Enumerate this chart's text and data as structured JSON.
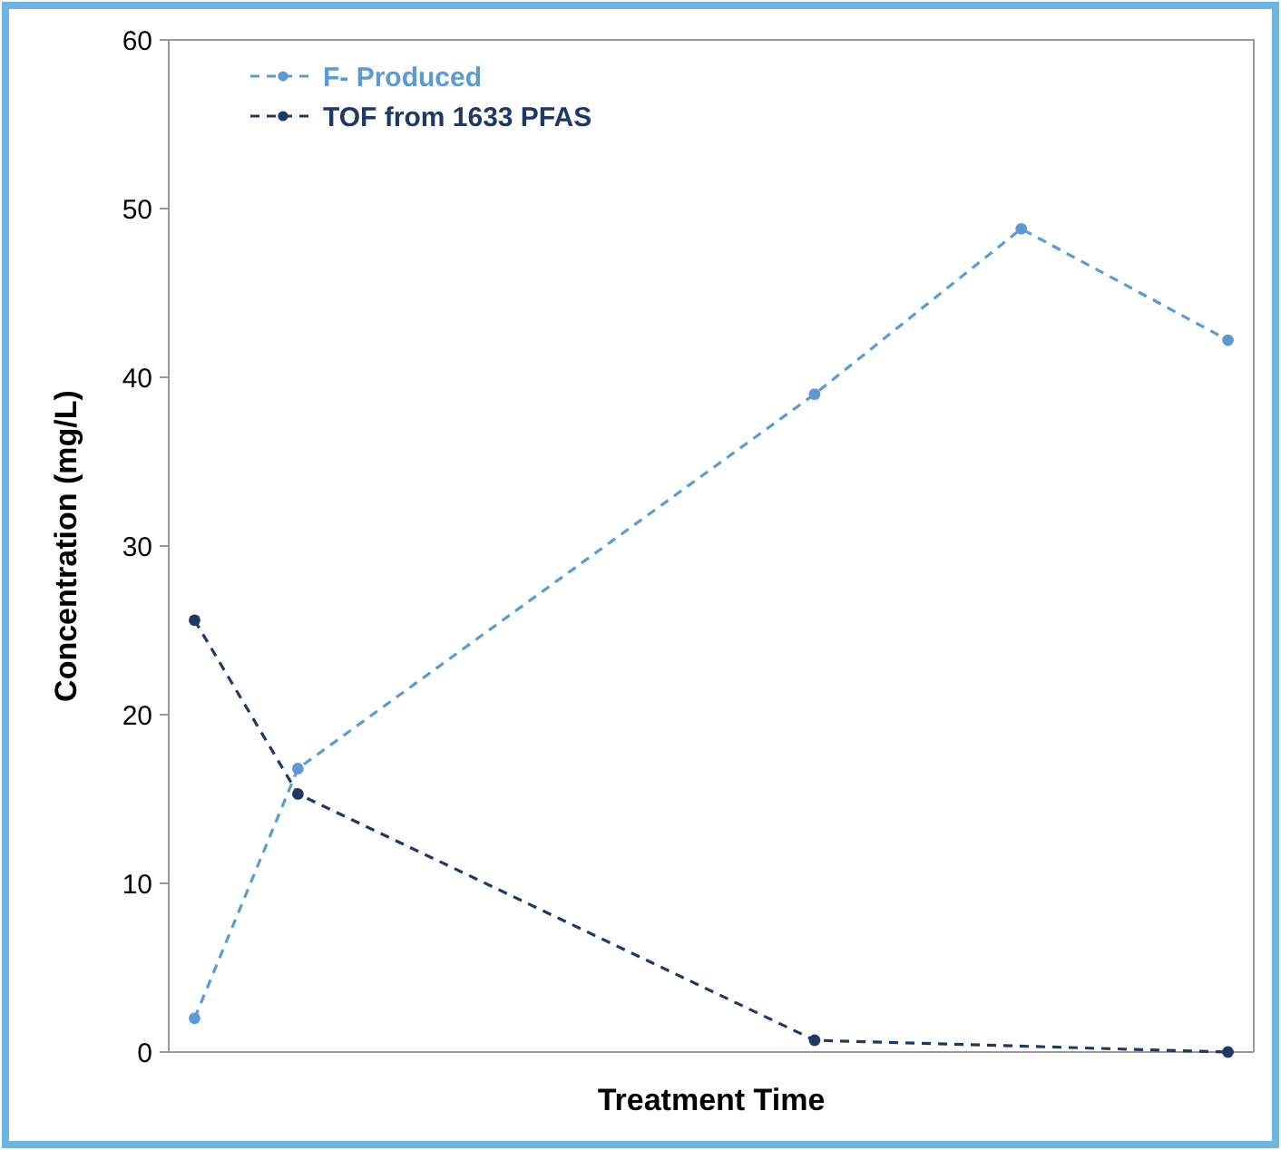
{
  "chart_data": {
    "type": "line",
    "xlabel": "Treatment Time",
    "ylabel": "Concentration (mg/L)",
    "categories": [
      null,
      null,
      null,
      null,
      null,
      null,
      null,
      null,
      null,
      null,
      null,
      null,
      null,
      null,
      null,
      null,
      null,
      null,
      null,
      null,
      null
    ],
    "ylim": [
      0,
      60
    ],
    "yticks": [
      0,
      10,
      20,
      30,
      40,
      50,
      60
    ],
    "grid": false,
    "legend": "top left",
    "marker": "circle",
    "line_style": "dashed",
    "series": [
      {
        "name": "F- Produced",
        "color": "#5b9bd5",
        "values": [
          2,
          null,
          16.8,
          null,
          null,
          null,
          null,
          null,
          null,
          null,
          null,
          null,
          39,
          null,
          null,
          null,
          48.8,
          null,
          null,
          null,
          42.2
        ]
      },
      {
        "name": "TOF from 1633 PFAS",
        "color": "#1f3864",
        "values": [
          25.6,
          null,
          15.3,
          null,
          null,
          null,
          null,
          null,
          null,
          null,
          null,
          null,
          0.7,
          null,
          null,
          null,
          null,
          null,
          null,
          null,
          0
        ]
      }
    ]
  }
}
